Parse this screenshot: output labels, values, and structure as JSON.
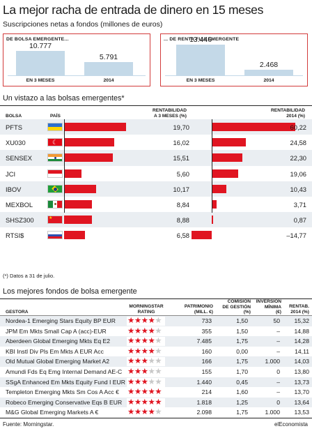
{
  "title": "La mejor racha de entrada de dinero en 15 meses",
  "subtitle": "Suscripciones netas a fondos (millones de euros)",
  "boxes": [
    {
      "header": "DE BOLSA EMERGENTE...",
      "items": [
        {
          "label": "EN 3 MESES",
          "value": "10.777",
          "num": 10777
        },
        {
          "label": "2014",
          "value": "5.791",
          "num": 5791
        }
      ]
    },
    {
      "header": "... DE RENTA FIJA EMERGENTE",
      "items": [
        {
          "label": "EN 3 MESES",
          "value": "13.446",
          "num": 13446
        },
        {
          "label": "2014",
          "value": "2.468",
          "num": 2468
        }
      ]
    }
  ],
  "section2": "Un vistazo a las bolsas emergentes*",
  "t2": {
    "bolsa": "BOLSA",
    "pais": "PAÍS",
    "r3a": "RENTABILIDAD",
    "r3b": "A 3 MESES (%)",
    "r14a": "RENTABILIDAD",
    "r14b": "2014 (%)"
  },
  "chart_data": {
    "type": "bar",
    "categories": [
      "PFTS",
      "XU030",
      "SENSEX",
      "JCI",
      "IBOV",
      "MEXBOL",
      "SHSZ300",
      "RTSI$"
    ],
    "flags": [
      "ukraine",
      "turkey",
      "india",
      "indonesia",
      "brazil",
      "mexico",
      "china",
      "russia"
    ],
    "series": [
      {
        "name": "RENTABILIDAD A 3 MESES (%)",
        "values": [
          19.7,
          16.02,
          15.51,
          5.6,
          10.17,
          8.84,
          8.88,
          6.58
        ],
        "labels": [
          "19,70",
          "16,02",
          "15,51",
          "5,60",
          "10,17",
          "8,84",
          "8,88",
          "6,58"
        ]
      },
      {
        "name": "RENTABILIDAD 2014 (%)",
        "values": [
          60.22,
          24.58,
          22.3,
          19.06,
          10.43,
          3.71,
          0.87,
          -14.77
        ],
        "labels": [
          "60,22",
          "24,58",
          "22,30",
          "19,06",
          "10,43",
          "3,71",
          "0,87",
          "–14,77"
        ]
      }
    ],
    "bar_color": "#e01521"
  },
  "footnote": "(*) Datos a 31 de julio.",
  "section3": "Los mejores fondos de bolsa emergente",
  "t3": {
    "gestora": "GESTORA",
    "ms_a": "MORNINGSTAR",
    "ms_b": "RATING",
    "pat_a": "PATRIMONIO",
    "pat_b": "(MILL. €)",
    "com_a": "COMISIÓN",
    "com_b": "DE GESTIÓN",
    "com_c": "(%)",
    "inv_a": "INVERSIÓN",
    "inv_b": "MÍNIMA",
    "inv_c": "(€)",
    "ren_a": "RENTAB.",
    "ren_b": "2014 (%)"
  },
  "funds": [
    {
      "name": "Nordea-1 Emerging Stars Equity BP EUR",
      "stars": 4,
      "patrimonio": "733",
      "comision": "1,50",
      "inversion": "50",
      "rentab": "15,32"
    },
    {
      "name": "JPM Em Mkts Small Cap A (acc)-EUR",
      "stars": 4,
      "patrimonio": "355",
      "comision": "1,50",
      "inversion": "–",
      "rentab": "14,88"
    },
    {
      "name": "Aberdeen Global Emerging Mkts Eq E2",
      "stars": 4,
      "patrimonio": "7.485",
      "comision": "1,75",
      "inversion": "–",
      "rentab": "14,28"
    },
    {
      "name": "KBI Instl Div Pls Em Mkts A EUR Acc",
      "stars": 4,
      "patrimonio": "160",
      "comision": "0,00",
      "inversion": "–",
      "rentab": "14,11"
    },
    {
      "name": "Old Mutual Global Emerging Market A2",
      "stars": 3,
      "patrimonio": "166",
      "comision": "1,75",
      "inversion": "1.000",
      "rentab": "14,03"
    },
    {
      "name": "Amundi Fds Eq Emg Internal Demand AE-C",
      "stars": 3,
      "patrimonio": "155",
      "comision": "1,70",
      "inversion": "0",
      "rentab": "13,80"
    },
    {
      "name": "SSgA Enhanced Em Mkts Equity Fund I EUR",
      "stars": 3,
      "patrimonio": "1.440",
      "comision": "0,45",
      "inversion": "–",
      "rentab": "13,73"
    },
    {
      "name": "Templeton Emerging Mkts Sm Cos A Acc €",
      "stars": 5,
      "patrimonio": "214",
      "comision": "1,60",
      "inversion": "–",
      "rentab": "13,70"
    },
    {
      "name": "Robeco Emerging Conservative Eqs B EUR",
      "stars": 5,
      "patrimonio": "1.818",
      "comision": "1,25",
      "inversion": "0",
      "rentab": "13,64"
    },
    {
      "name": "M&G Global Emerging Markets A €",
      "stars": 4,
      "patrimonio": "2.098",
      "comision": "1,75",
      "inversion": "1.000",
      "rentab": "13,53"
    }
  ],
  "source": "Fuente: Morningstar.",
  "brand": "elEconomista"
}
